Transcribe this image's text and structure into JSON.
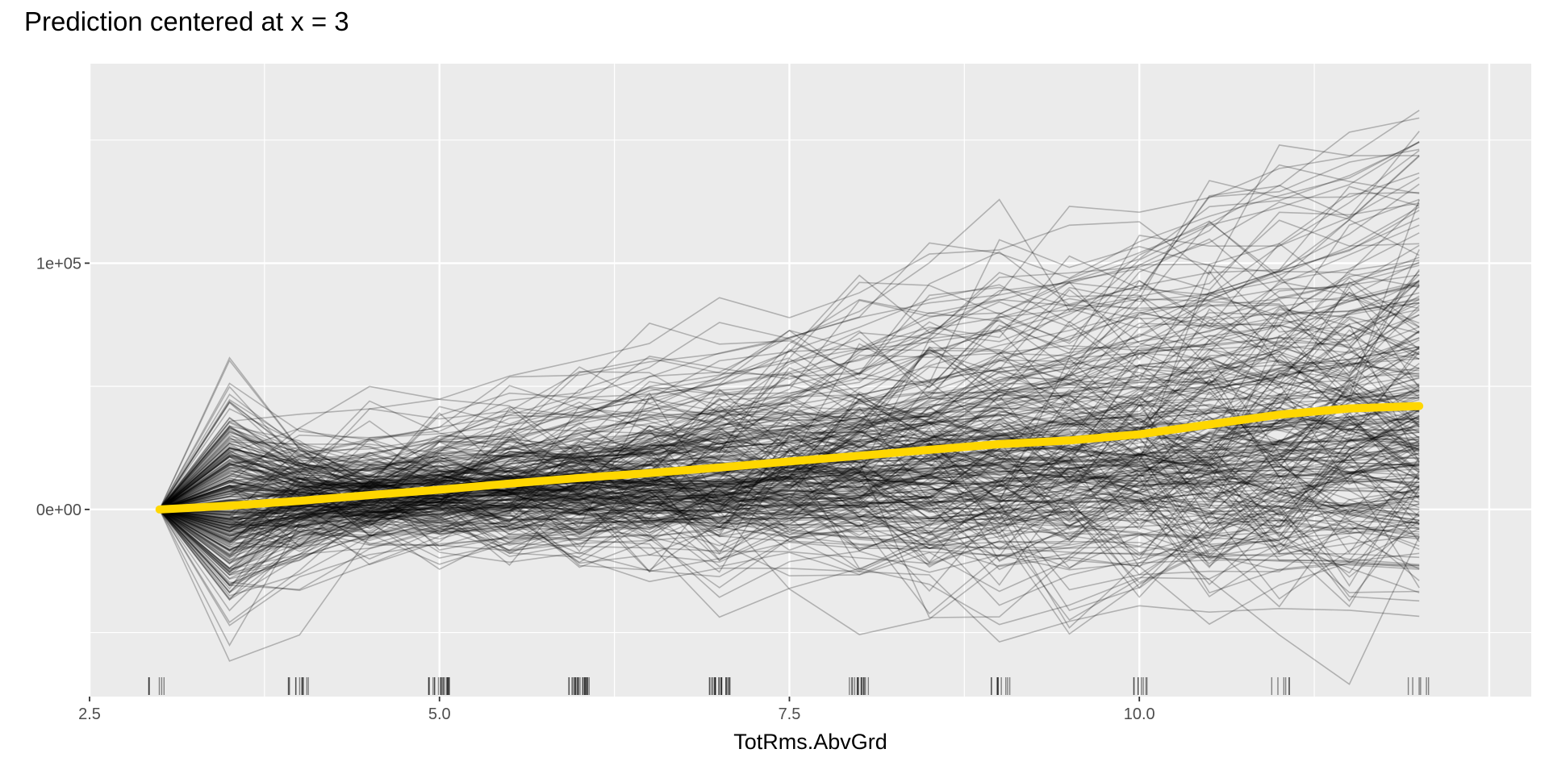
{
  "chart_data": {
    "type": "line",
    "title": "Prediction centered at x = 3",
    "xlabel": "TotRms.AbvGrd",
    "ylabel": "",
    "xlim": [
      2.5,
      12.8
    ],
    "ylim": [
      -76000,
      181000
    ],
    "x_ticks": [
      2.5,
      5.0,
      7.5,
      10.0
    ],
    "x_tick_labels": [
      "2.5",
      "5.0",
      "7.5",
      "10.0"
    ],
    "y_ticks": [
      0,
      100000
    ],
    "y_tick_labels": [
      "0e+00",
      "1e+05"
    ],
    "y_minor_gridlines": [
      -50000,
      50000,
      150000
    ],
    "grid": true,
    "background": "#ebebeb",
    "ice_curves": {
      "color": "#000000",
      "opacity": 0.25,
      "count": 300,
      "x_start": 3,
      "x_end": 12,
      "centered_value": 0,
      "range_at_x_end": [
        -46000,
        165000
      ]
    },
    "series": [
      {
        "name": "",
        "color": "#FFD700",
        "x": [
          3,
          3.5,
          4,
          4.5,
          5,
          5.5,
          6,
          6.5,
          7,
          7.5,
          8,
          8.5,
          9,
          9.5,
          10,
          10.5,
          11,
          11.5,
          12
        ],
        "y": [
          0,
          1500,
          3500,
          5800,
          8000,
          10500,
          12800,
          14800,
          17000,
          19500,
          21800,
          24200,
          26500,
          28000,
          30500,
          34500,
          38500,
          41000,
          42000
        ]
      }
    ],
    "rug": {
      "color": "#000000",
      "clusters": [
        {
          "center": 3.0,
          "count": 6
        },
        {
          "center": 4.0,
          "count": 12
        },
        {
          "center": 5.0,
          "count": 20
        },
        {
          "center": 6.0,
          "count": 24
        },
        {
          "center": 7.0,
          "count": 22
        },
        {
          "center": 8.0,
          "count": 16
        },
        {
          "center": 9.0,
          "count": 10
        },
        {
          "center": 10.0,
          "count": 8
        },
        {
          "center": 11.0,
          "count": 6
        },
        {
          "center": 12.0,
          "count": 6
        }
      ]
    }
  }
}
